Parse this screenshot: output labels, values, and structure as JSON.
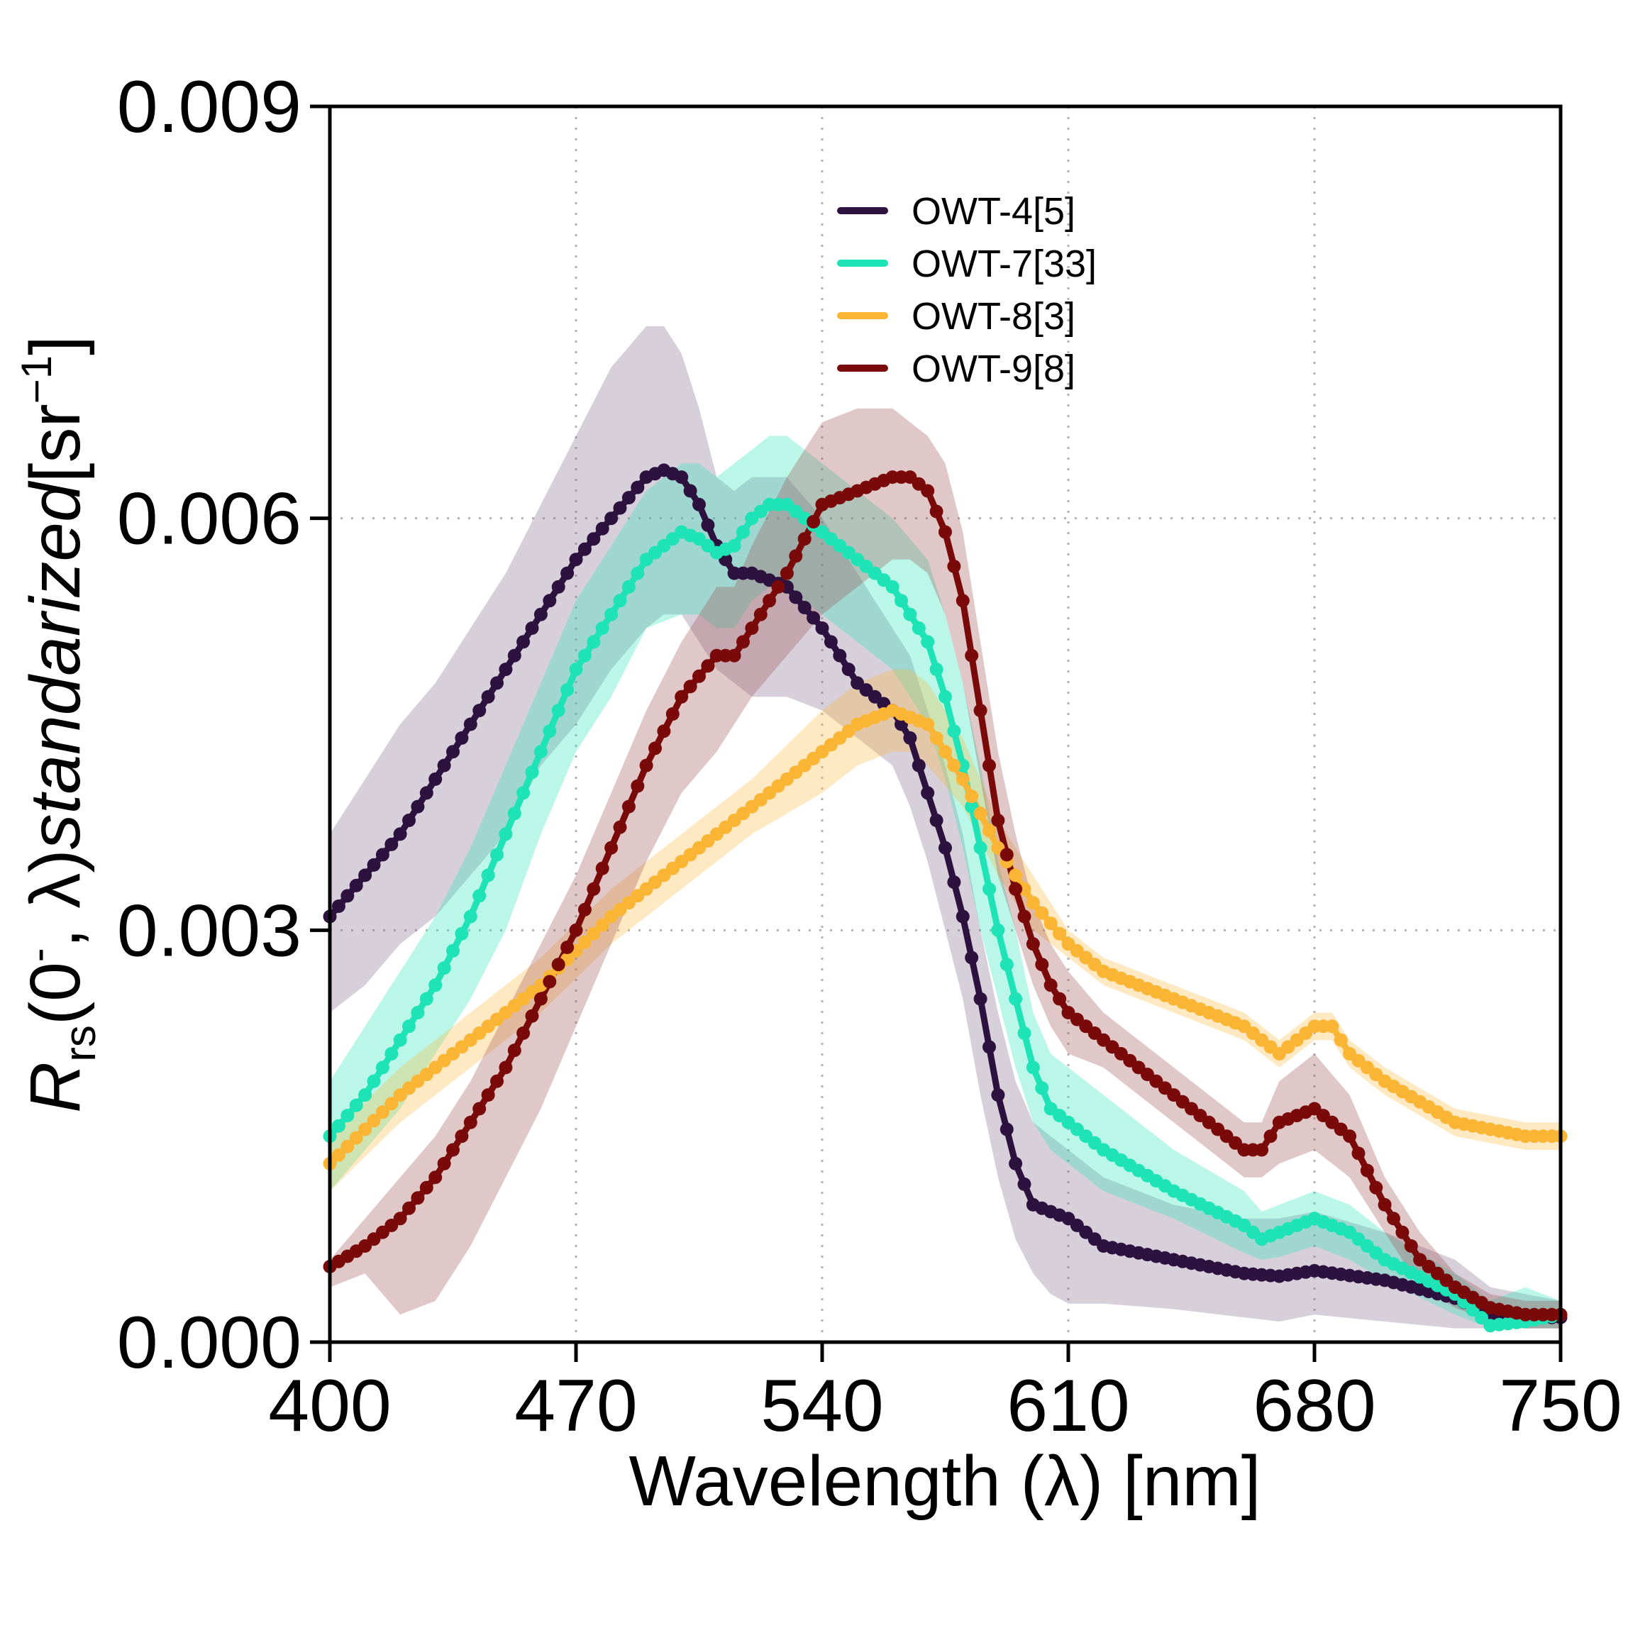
{
  "chart_data": {
    "type": "line",
    "xlabel": "Wavelength (λ) [nm]",
    "ylabel": {
      "base": "R",
      "sub": "rs",
      "open": "(0",
      "sup1": "-",
      "mid": ", λ)",
      "italic": "standarized",
      "unit_open": "[sr",
      "sup2": "−1",
      "unit_close": "]"
    },
    "xlim": [
      400,
      750
    ],
    "ylim": [
      0,
      0.009
    ],
    "x_ticks": [
      400,
      470,
      540,
      610,
      680,
      750
    ],
    "x_tick_labels": [
      "400",
      "470",
      "540",
      "610",
      "680",
      "750"
    ],
    "y_ticks": [
      0,
      0.003,
      0.006,
      0.009
    ],
    "y_tick_labels": [
      "0.000",
      "0.003",
      "0.006",
      "0.009"
    ],
    "grid": true,
    "legend_position": "top-center",
    "series": [
      {
        "name": "OWT-4[5]",
        "color": "#2d1240",
        "band_color": "#7a6488",
        "x": [
          400,
          410,
          420,
          430,
          440,
          450,
          460,
          470,
          480,
          490,
          495,
          500,
          505,
          510,
          515,
          520,
          530,
          540,
          550,
          560,
          565,
          570,
          575,
          580,
          585,
          590,
          595,
          600,
          605,
          610,
          620,
          640,
          660,
          670,
          680,
          700,
          720,
          730,
          740,
          750
        ],
        "y": [
          0.0031,
          0.0034,
          0.0037,
          0.0041,
          0.0045,
          0.0049,
          0.0053,
          0.0057,
          0.006,
          0.0063,
          0.00635,
          0.0063,
          0.0061,
          0.0058,
          0.0056,
          0.0056,
          0.0055,
          0.0052,
          0.0048,
          0.0046,
          0.0044,
          0.004,
          0.0036,
          0.0031,
          0.0025,
          0.0018,
          0.0013,
          0.001,
          0.00095,
          0.0009,
          0.0007,
          0.0006,
          0.0005,
          0.00048,
          0.00052,
          0.00045,
          0.00032,
          0.0002,
          0.00018,
          0.00018
        ],
        "lower": [
          0.0024,
          0.0026,
          0.0029,
          0.0031,
          0.0034,
          0.0037,
          0.0042,
          0.0045,
          0.0049,
          0.0052,
          0.0053,
          0.0053,
          0.0051,
          0.0049,
          0.0048,
          0.0047,
          0.0047,
          0.0046,
          0.0044,
          0.0042,
          0.0039,
          0.0035,
          0.003,
          0.0025,
          0.0018,
          0.0012,
          0.00075,
          0.0005,
          0.00035,
          0.00028,
          0.00028,
          0.00024,
          0.00018,
          0.00015,
          0.0002,
          0.00015,
          0.0001,
          0.0001,
          0.0001,
          0.0001
        ],
        "upper": [
          0.0037,
          0.0041,
          0.0045,
          0.0048,
          0.0052,
          0.0056,
          0.0061,
          0.0066,
          0.0071,
          0.0074,
          0.0074,
          0.0072,
          0.0068,
          0.0063,
          0.0062,
          0.0063,
          0.0063,
          0.006,
          0.0056,
          0.0052,
          0.005,
          0.0046,
          0.0042,
          0.0037,
          0.003,
          0.0024,
          0.0019,
          0.0016,
          0.0015,
          0.0014,
          0.0012,
          0.001,
          0.0009,
          0.0009,
          0.00095,
          0.0008,
          0.0006,
          0.0004,
          0.00035,
          0.0003
        ]
      },
      {
        "name": "OWT-7[33]",
        "color": "#1de3b6",
        "band_color": "#1de3b6",
        "x": [
          400,
          410,
          420,
          430,
          440,
          450,
          460,
          470,
          480,
          490,
          500,
          505,
          510,
          515,
          520,
          525,
          530,
          535,
          540,
          550,
          560,
          570,
          575,
          580,
          585,
          590,
          595,
          600,
          605,
          610,
          620,
          640,
          660,
          665,
          670,
          680,
          690,
          700,
          720,
          730,
          740,
          750
        ],
        "y": [
          0.0015,
          0.0018,
          0.0022,
          0.0026,
          0.0031,
          0.0037,
          0.0043,
          0.0049,
          0.0053,
          0.0057,
          0.0059,
          0.00585,
          0.00575,
          0.0058,
          0.006,
          0.0061,
          0.0061,
          0.006,
          0.0059,
          0.0057,
          0.0055,
          0.0051,
          0.0047,
          0.0042,
          0.0036,
          0.003,
          0.0025,
          0.002,
          0.0017,
          0.0016,
          0.0014,
          0.0011,
          0.00085,
          0.00075,
          0.0008,
          0.0009,
          0.0008,
          0.0006,
          0.00035,
          0.00012,
          0.00015,
          0.0002
        ],
        "lower": [
          0.0011,
          0.0014,
          0.0017,
          0.0021,
          0.0025,
          0.003,
          0.0037,
          0.0043,
          0.0047,
          0.0052,
          0.0053,
          0.0053,
          0.0052,
          0.0052,
          0.0054,
          0.0055,
          0.0055,
          0.0054,
          0.0053,
          0.0051,
          0.0049,
          0.0045,
          0.0041,
          0.0036,
          0.003,
          0.0025,
          0.002,
          0.0016,
          0.0014,
          0.0013,
          0.0011,
          0.0009,
          0.00065,
          0.0006,
          0.00062,
          0.0007,
          0.0006,
          0.00045,
          0.0002,
          0.0001,
          0.0001,
          0.0001
        ],
        "upper": [
          0.0019,
          0.0023,
          0.0027,
          0.0031,
          0.0036,
          0.0042,
          0.0048,
          0.0054,
          0.0058,
          0.0062,
          0.0064,
          0.0064,
          0.0063,
          0.0064,
          0.0065,
          0.0066,
          0.0066,
          0.0065,
          0.0064,
          0.0062,
          0.006,
          0.0057,
          0.0053,
          0.0048,
          0.0042,
          0.0035,
          0.003,
          0.0024,
          0.0021,
          0.002,
          0.0018,
          0.0014,
          0.0011,
          0.00095,
          0.001,
          0.0011,
          0.001,
          0.0008,
          0.0005,
          0.0003,
          0.0004,
          0.0003
        ]
      },
      {
        "name": "OWT-8[3]",
        "color": "#fbb535",
        "band_color": "#fbb535",
        "x": [
          400,
          420,
          440,
          460,
          480,
          500,
          520,
          540,
          550,
          560,
          565,
          570,
          580,
          590,
          600,
          610,
          620,
          640,
          660,
          670,
          680,
          685,
          690,
          700,
          720,
          740,
          750
        ],
        "y": [
          0.0013,
          0.0018,
          0.0022,
          0.0026,
          0.0031,
          0.0035,
          0.0039,
          0.0043,
          0.0045,
          0.0046,
          0.00455,
          0.0045,
          0.0041,
          0.0036,
          0.0032,
          0.0029,
          0.0027,
          0.0025,
          0.0023,
          0.0021,
          0.0023,
          0.0023,
          0.0021,
          0.0019,
          0.0016,
          0.0015,
          0.0015
        ],
        "lower": [
          0.0011,
          0.0016,
          0.002,
          0.0024,
          0.0029,
          0.0033,
          0.0037,
          0.004,
          0.0042,
          0.0043,
          0.0043,
          0.0042,
          0.0039,
          0.0034,
          0.003,
          0.0028,
          0.0026,
          0.0024,
          0.0022,
          0.002,
          0.0022,
          0.0022,
          0.002,
          0.0018,
          0.0015,
          0.0014,
          0.0014
        ],
        "upper": [
          0.0015,
          0.002,
          0.0024,
          0.0028,
          0.0033,
          0.0037,
          0.0041,
          0.0046,
          0.0048,
          0.0049,
          0.0049,
          0.0048,
          0.0044,
          0.0038,
          0.0034,
          0.003,
          0.0028,
          0.0026,
          0.0024,
          0.0022,
          0.0024,
          0.0024,
          0.0022,
          0.002,
          0.0017,
          0.0016,
          0.0016
        ]
      },
      {
        "name": "OWT-9[8]",
        "color": "#7a0a0a",
        "band_color": "#9a4a4a",
        "x": [
          400,
          410,
          420,
          430,
          440,
          450,
          460,
          470,
          480,
          490,
          500,
          510,
          515,
          520,
          530,
          540,
          550,
          560,
          565,
          570,
          575,
          580,
          585,
          590,
          595,
          600,
          605,
          610,
          620,
          640,
          660,
          665,
          670,
          680,
          690,
          700,
          710,
          720,
          730,
          740,
          750
        ],
        "y": [
          0.00055,
          0.0007,
          0.0009,
          0.0012,
          0.0016,
          0.002,
          0.0025,
          0.003,
          0.0036,
          0.0042,
          0.0047,
          0.005,
          0.005,
          0.0052,
          0.0056,
          0.0061,
          0.0062,
          0.0063,
          0.0063,
          0.0062,
          0.0059,
          0.0054,
          0.0046,
          0.0038,
          0.0033,
          0.0029,
          0.0026,
          0.0024,
          0.0022,
          0.0018,
          0.0014,
          0.0014,
          0.0016,
          0.0017,
          0.0015,
          0.001,
          0.0006,
          0.0004,
          0.00025,
          0.0002,
          0.0002
        ],
        "lower": [
          0.0004,
          0.0005,
          0.0002,
          0.0003,
          0.0007,
          0.0012,
          0.0017,
          0.0023,
          0.0029,
          0.0035,
          0.004,
          0.0043,
          0.0045,
          0.0047,
          0.005,
          0.0053,
          0.0055,
          0.0057,
          0.0057,
          0.0056,
          0.0053,
          0.0048,
          0.0041,
          0.0034,
          0.003,
          0.0026,
          0.0023,
          0.0021,
          0.002,
          0.0016,
          0.0012,
          0.0012,
          0.0013,
          0.0014,
          0.0012,
          0.0008,
          0.0004,
          0.00025,
          0.00015,
          0.0001,
          0.0001
        ],
        "upper": [
          0.0006,
          0.0009,
          0.0012,
          0.0015,
          0.0019,
          0.0024,
          0.0029,
          0.0034,
          0.004,
          0.0046,
          0.0051,
          0.0055,
          0.0055,
          0.0058,
          0.0063,
          0.0067,
          0.0068,
          0.0068,
          0.0067,
          0.0066,
          0.0064,
          0.0059,
          0.0051,
          0.0043,
          0.0037,
          0.0032,
          0.0029,
          0.0027,
          0.0024,
          0.002,
          0.0016,
          0.0016,
          0.0019,
          0.0021,
          0.0018,
          0.0012,
          0.0008,
          0.0005,
          0.00035,
          0.0003,
          0.0003
        ]
      }
    ]
  }
}
